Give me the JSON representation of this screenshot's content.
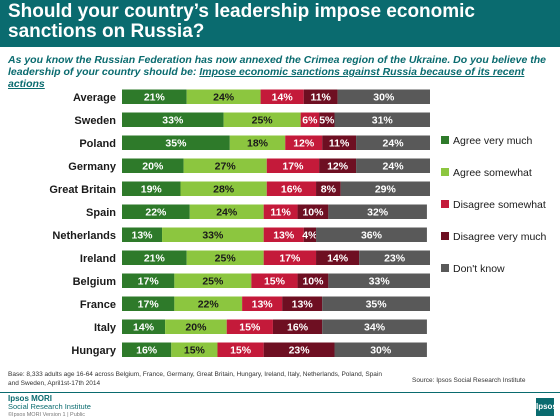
{
  "title": "Should your country’s leadership impose economic sanctions on Russia?",
  "question": {
    "text": "As you know the Russian Federation has now annexed the Crimea region of the Ukraine. Do you believe the leadership of your country should be: ",
    "emphasis": "Impose economic sanctions against Russia because of its recent actions"
  },
  "colors": {
    "header": "#0a6b6f",
    "agree_very": "#2e7a2a",
    "agree_somewhat": "#8cc63f",
    "disagree_somewhat": "#c41a3a",
    "disagree_very": "#6e0f22",
    "dont_know": "#595959"
  },
  "chart_data": {
    "type": "bar",
    "orientation": "horizontal",
    "stacked": true,
    "categories": [
      "Average",
      "Sweden",
      "Poland",
      "Germany",
      "Great Britain",
      "Spain",
      "Netherlands",
      "Ireland",
      "Belgium",
      "France",
      "Italy",
      "Hungary"
    ],
    "series": [
      {
        "name": "Agree very much",
        "color": "#2e7a2a",
        "values": [
          21,
          33,
          35,
          20,
          19,
          22,
          13,
          21,
          17,
          17,
          14,
          16
        ]
      },
      {
        "name": "Agree somewhat",
        "color": "#8cc63f",
        "values": [
          24,
          25,
          18,
          27,
          28,
          24,
          33,
          25,
          25,
          22,
          20,
          15
        ]
      },
      {
        "name": "Disagree somewhat",
        "color": "#c41a3a",
        "values": [
          14,
          6,
          12,
          17,
          16,
          11,
          13,
          17,
          15,
          13,
          15,
          15
        ]
      },
      {
        "name": "Disagree very much",
        "color": "#6e0f22",
        "values": [
          11,
          5,
          11,
          12,
          8,
          10,
          4,
          14,
          10,
          13,
          16,
          23
        ]
      },
      {
        "name": "Don't know",
        "color": "#595959",
        "values": [
          30,
          31,
          24,
          24,
          29,
          32,
          36,
          23,
          33,
          35,
          34,
          30
        ]
      }
    ],
    "value_suffix": "%",
    "legend_position": "right",
    "xlim": [
      0,
      100
    ]
  },
  "footnote": "Base: 8,333 adults age 16-64 across Belgium, France, Germany, Great Britain, Hungary, Ireland, Italy, Netherlands, Poland, Spain and Sweden, April1st-17th 2014",
  "source": "Source: Ipsos Social Research Institute",
  "brand": {
    "name": "Ipsos MORI",
    "sub": "Social Research Institute",
    "small": "©Ipsos MORI   Version 1 | Public",
    "logo_text": "Ipsos"
  }
}
